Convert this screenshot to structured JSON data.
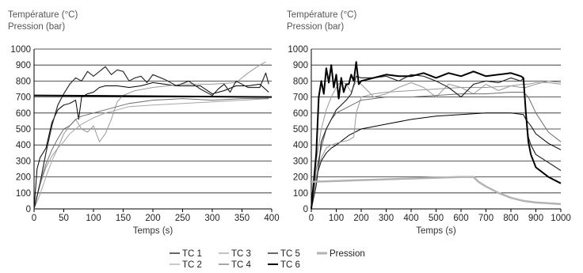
{
  "chart_data": [
    {
      "type": "line",
      "ylabel_lines": [
        "Température (°C)",
        "Pression (bar)"
      ],
      "xlabel": "Temps (s)",
      "xlim": [
        0,
        400
      ],
      "ylim": [
        0,
        1000
      ],
      "xticks": [
        0,
        50,
        100,
        150,
        200,
        250,
        300,
        350,
        400
      ],
      "yticks": [
        0,
        100,
        200,
        300,
        400,
        500,
        600,
        700,
        800,
        900,
        1000
      ],
      "grid": "horizontal",
      "series": [
        {
          "name": "TC 1",
          "color": "#000000",
          "width": 1.0,
          "x": [
            0,
            5,
            10,
            20,
            30,
            40,
            50,
            60,
            70,
            75,
            80,
            90,
            100,
            110,
            120,
            140,
            160,
            180,
            200,
            220,
            240,
            260,
            280,
            300,
            320,
            340,
            360,
            380,
            395
          ],
          "y": [
            0,
            250,
            320,
            380,
            540,
            620,
            650,
            660,
            680,
            560,
            700,
            720,
            730,
            760,
            770,
            770,
            760,
            770,
            790,
            780,
            770,
            770,
            770,
            720,
            740,
            770,
            770,
            780,
            730
          ]
        },
        {
          "name": "TC 2",
          "color": "#a6a6a6",
          "width": 1.0,
          "x": [
            0,
            10,
            20,
            30,
            40,
            50,
            60,
            70,
            80,
            100,
            120,
            140,
            160,
            200,
            250,
            300,
            350,
            395
          ],
          "y": [
            0,
            90,
            200,
            300,
            380,
            420,
            470,
            500,
            530,
            570,
            600,
            620,
            640,
            650,
            660,
            670,
            680,
            690
          ]
        },
        {
          "name": "TC 3",
          "color": "#9a9a9a",
          "width": 1.0,
          "x": [
            0,
            10,
            20,
            30,
            40,
            50,
            60,
            70,
            80,
            90,
            100,
            110,
            120,
            130,
            140,
            150,
            170,
            200,
            250,
            300,
            340,
            360,
            380,
            390
          ],
          "y": [
            0,
            150,
            260,
            330,
            380,
            470,
            520,
            560,
            500,
            480,
            520,
            420,
            470,
            560,
            670,
            710,
            740,
            760,
            780,
            780,
            790,
            850,
            900,
            920
          ]
        },
        {
          "name": "TC 4",
          "color": "#6e6e6e",
          "width": 1.0,
          "x": [
            0,
            10,
            20,
            30,
            40,
            50,
            60,
            70,
            80,
            100,
            120,
            140,
            160,
            200,
            250,
            300,
            350,
            395
          ],
          "y": [
            0,
            160,
            280,
            370,
            440,
            500,
            520,
            560,
            580,
            600,
            620,
            640,
            660,
            680,
            690,
            680,
            690,
            690
          ]
        },
        {
          "name": "TC 5",
          "color": "#2a2a2a",
          "width": 1.2,
          "x": [
            0,
            10,
            20,
            30,
            40,
            50,
            60,
            70,
            80,
            90,
            100,
            110,
            120,
            130,
            140,
            150,
            160,
            170,
            180,
            190,
            200,
            220,
            240,
            260,
            280,
            300,
            310,
            320,
            330,
            340,
            360,
            380,
            390,
            395
          ],
          "y": [
            0,
            160,
            350,
            520,
            650,
            720,
            780,
            820,
            800,
            860,
            830,
            860,
            890,
            840,
            870,
            860,
            800,
            820,
            830,
            790,
            840,
            810,
            770,
            800,
            750,
            710,
            750,
            780,
            730,
            800,
            760,
            760,
            850,
            780
          ]
        },
        {
          "name": "TC 6",
          "color": "#000000",
          "width": 2.0,
          "x": [
            0,
            400
          ],
          "y": [
            710,
            700
          ]
        },
        {
          "name": "Pression",
          "color": "#b3b3b3",
          "width": 2.5,
          "x": [],
          "y": []
        }
      ]
    },
    {
      "type": "line",
      "ylabel_lines": [
        "Température (°C)",
        "Pression (bar)"
      ],
      "xlabel": "Temps (s)",
      "xlim": [
        0,
        1000
      ],
      "ylim": [
        0,
        1000
      ],
      "xticks": [
        0,
        100,
        200,
        300,
        400,
        500,
        600,
        700,
        800,
        900,
        1000
      ],
      "yticks": [
        0,
        100,
        200,
        300,
        400,
        500,
        600,
        700,
        800,
        900,
        1000
      ],
      "grid": "horizontal",
      "series": [
        {
          "name": "TC 1",
          "color": "#000000",
          "width": 1.0,
          "x": [
            0,
            20,
            40,
            60,
            80,
            100,
            150,
            200,
            300,
            400,
            500,
            600,
            700,
            800,
            850,
            860,
            880,
            900,
            950,
            1000
          ],
          "y": [
            0,
            200,
            300,
            350,
            380,
            400,
            460,
            500,
            530,
            560,
            580,
            590,
            600,
            600,
            590,
            560,
            520,
            470,
            410,
            370
          ]
        },
        {
          "name": "TC 2",
          "color": "#9a9a9a",
          "width": 1.0,
          "x": [
            0,
            20,
            40,
            60,
            80,
            100,
            120,
            150,
            170,
            180,
            190,
            200,
            250,
            300,
            400,
            500,
            600,
            700,
            800,
            850,
            870,
            900,
            950,
            1000
          ],
          "y": [
            0,
            200,
            320,
            380,
            400,
            410,
            420,
            430,
            450,
            600,
            650,
            700,
            720,
            730,
            740,
            750,
            760,
            760,
            770,
            780,
            780,
            790,
            790,
            780
          ]
        },
        {
          "name": "TC 3",
          "color": "#9a9a9a",
          "width": 1.0,
          "x": [
            0,
            20,
            40,
            60,
            80,
            100,
            120,
            140,
            160,
            180,
            200,
            250,
            300,
            350,
            400,
            450,
            500,
            550,
            600,
            650,
            700,
            750,
            800,
            840,
            860,
            900,
            950,
            1000
          ],
          "y": [
            0,
            300,
            500,
            620,
            700,
            760,
            800,
            780,
            730,
            800,
            780,
            700,
            720,
            760,
            790,
            760,
            700,
            780,
            760,
            720,
            780,
            740,
            770,
            760,
            760,
            780,
            800,
            790
          ]
        },
        {
          "name": "TC 4",
          "color": "#6e6e6e",
          "width": 1.0,
          "x": [
            0,
            20,
            40,
            60,
            80,
            100,
            150,
            200,
            300,
            400,
            500,
            600,
            700,
            800,
            850,
            870,
            900,
            950,
            1000
          ],
          "y": [
            0,
            250,
            380,
            500,
            560,
            600,
            640,
            680,
            700,
            700,
            710,
            720,
            720,
            730,
            730,
            700,
            600,
            480,
            420
          ]
        },
        {
          "name": "TC 5",
          "color": "#2a2a2a",
          "width": 1.2,
          "x": [
            0,
            20,
            40,
            60,
            80,
            100,
            120,
            140,
            160,
            180,
            200,
            250,
            300,
            350,
            400,
            450,
            500,
            550,
            600,
            650,
            700,
            750,
            800,
            840,
            850,
            860,
            870,
            880,
            900,
            950,
            1000
          ],
          "y": [
            0,
            150,
            420,
            500,
            560,
            620,
            650,
            680,
            720,
            830,
            820,
            820,
            830,
            800,
            840,
            830,
            800,
            760,
            700,
            780,
            800,
            790,
            820,
            800,
            820,
            600,
            450,
            400,
            340,
            290,
            240
          ]
        },
        {
          "name": "TC 6",
          "color": "#000000",
          "width": 2.0,
          "x": [
            0,
            20,
            30,
            40,
            50,
            60,
            70,
            80,
            90,
            100,
            110,
            120,
            130,
            140,
            150,
            160,
            170,
            180,
            190,
            200,
            250,
            300,
            350,
            400,
            450,
            500,
            550,
            600,
            650,
            700,
            750,
            800,
            840,
            850,
            860,
            870,
            880,
            900,
            950,
            1000
          ],
          "y": [
            0,
            350,
            700,
            800,
            720,
            880,
            790,
            900,
            760,
            840,
            690,
            820,
            730,
            780,
            780,
            840,
            800,
            920,
            780,
            800,
            820,
            840,
            830,
            830,
            850,
            820,
            850,
            830,
            860,
            830,
            840,
            850,
            830,
            820,
            600,
            420,
            340,
            260,
            200,
            160
          ]
        },
        {
          "name": "Pression",
          "color": "#b3b3b3",
          "width": 2.5,
          "x": [
            0,
            100,
            200,
            300,
            400,
            500,
            600,
            650,
            670,
            700,
            750,
            800,
            850,
            900,
            950,
            1000
          ],
          "y": [
            170,
            175,
            180,
            185,
            190,
            195,
            200,
            200,
            170,
            140,
            100,
            70,
            50,
            40,
            35,
            30
          ]
        }
      ]
    }
  ],
  "legend": {
    "row1": [
      {
        "label": "TC 1",
        "color": "#000000",
        "width": 1.2
      },
      {
        "label": "TC 3",
        "color": "#9a9a9a",
        "width": 1.2
      },
      {
        "label": "TC 5",
        "color": "#2a2a2a",
        "width": 1.4
      },
      {
        "label": "Pression",
        "color": "#b3b3b3",
        "width": 3
      }
    ],
    "row2": [
      {
        "label": "TC 2",
        "color": "#a6a6a6",
        "width": 1.2
      },
      {
        "label": "TC 4",
        "color": "#6e6e6e",
        "width": 1.2
      },
      {
        "label": "TC 6",
        "color": "#000000",
        "width": 2
      }
    ]
  }
}
